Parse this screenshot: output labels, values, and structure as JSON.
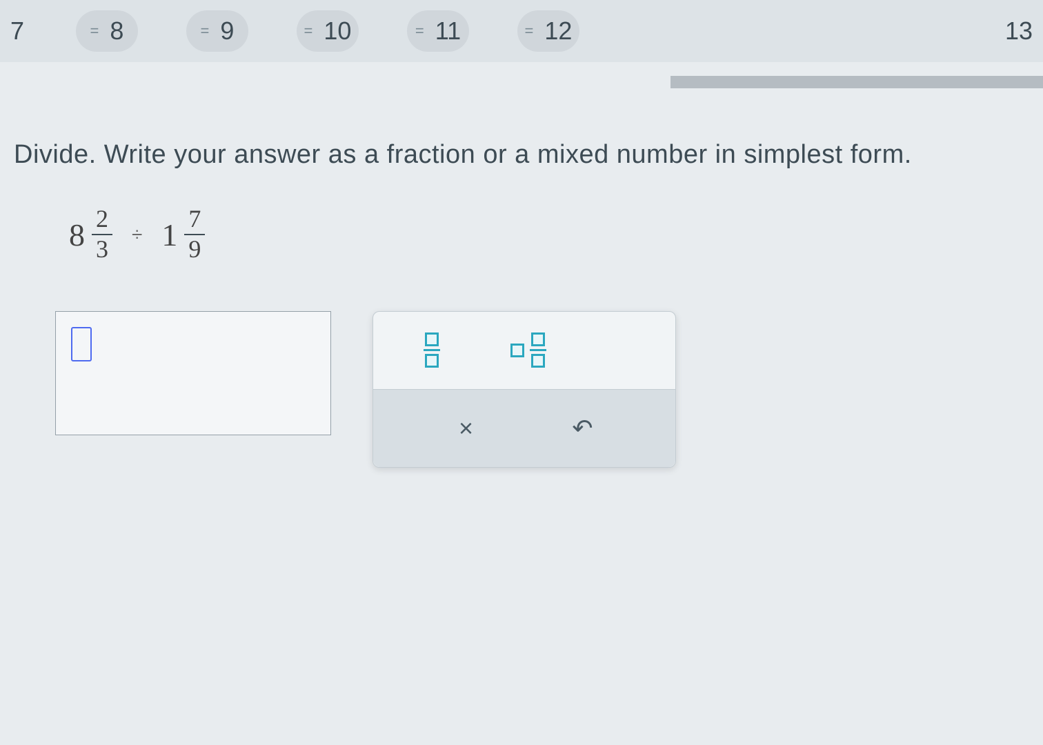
{
  "nav": {
    "items": [
      {
        "label": "7",
        "showEq": false,
        "cls": "first"
      },
      {
        "label": "8",
        "showEq": true,
        "cls": ""
      },
      {
        "label": "9",
        "showEq": true,
        "cls": ""
      },
      {
        "label": "10",
        "showEq": true,
        "cls": ""
      },
      {
        "label": "11",
        "showEq": true,
        "cls": ""
      },
      {
        "label": "12",
        "showEq": true,
        "cls": ""
      },
      {
        "label": "13",
        "showEq": false,
        "cls": "last"
      }
    ],
    "eqGlyph": "="
  },
  "question": "Divide. Write your answer as a fraction or a mixed number in simplest form.",
  "expression": {
    "left": {
      "whole": "8",
      "num": "2",
      "den": "3"
    },
    "op": "÷",
    "right": {
      "whole": "1",
      "num": "7",
      "den": "9"
    }
  },
  "answer": {
    "value": ""
  },
  "tools": {
    "clearGlyph": "×",
    "undoGlyph": "↶"
  },
  "colors": {
    "pageBg": "#e8ecef",
    "navBg": "#dde3e7",
    "pillBg": "#d0d6db",
    "text": "#3d4b54",
    "accent": "#2ba7bf",
    "cursor": "#4e6af0",
    "progress": "#b5bcc2"
  }
}
